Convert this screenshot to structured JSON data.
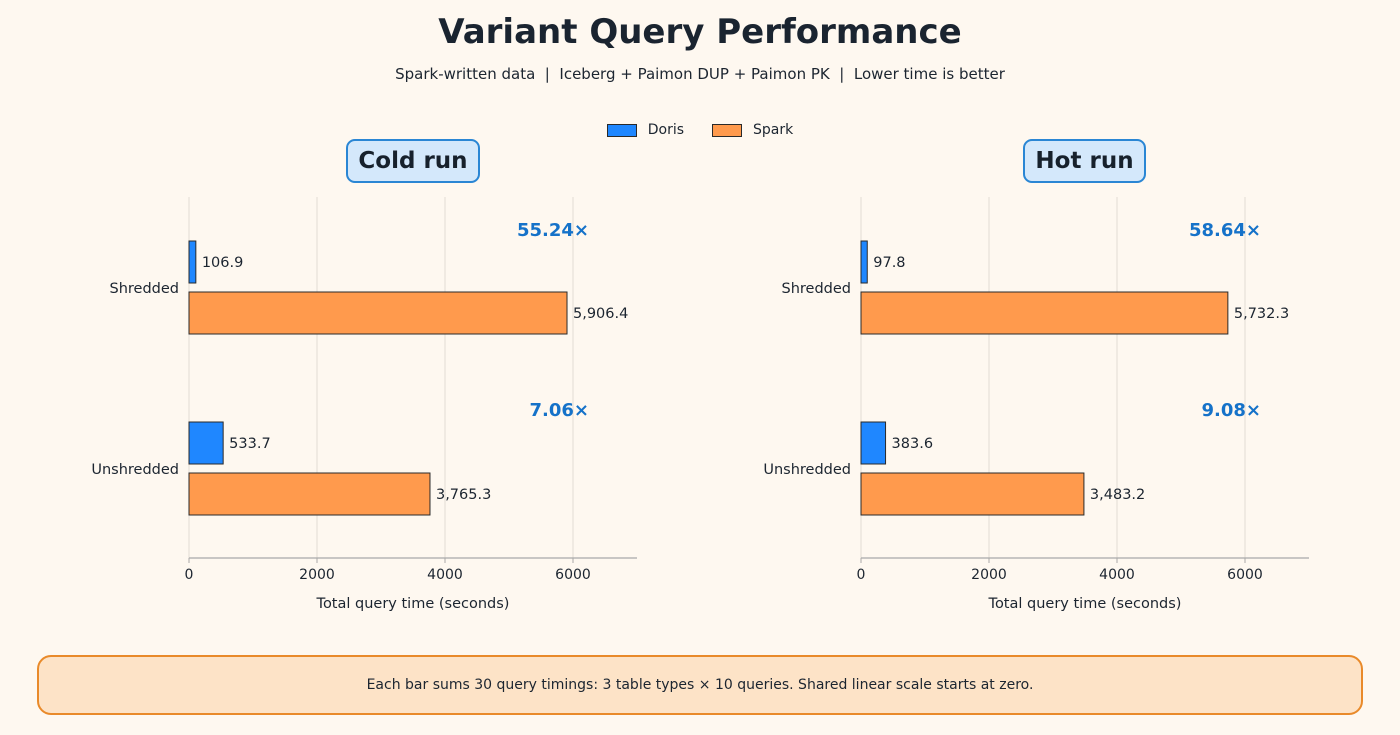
{
  "title": "Variant Query Performance",
  "subtitle": "Spark-written data  |  Iceberg + Paimon DUP + Paimon PK  |  Lower time is better",
  "legend": [
    {
      "name": "Doris",
      "color": "#1f87ff"
    },
    {
      "name": "Spark",
      "color": "#ff9a4d"
    }
  ],
  "footnote": "Each bar sums 30 query timings: 3 table types × 10 queries. Shared linear scale starts at zero.",
  "chart_data": [
    {
      "type": "bar",
      "orientation": "horizontal",
      "title": "Cold run",
      "xlabel": "Total query time (seconds)",
      "categories": [
        "Shredded",
        "Unshredded"
      ],
      "series": [
        {
          "name": "Doris",
          "values": [
            106.9,
            533.7
          ],
          "labels": [
            "106.9",
            "533.7"
          ]
        },
        {
          "name": "Spark",
          "values": [
            5906.4,
            3765.3
          ],
          "labels": [
            "5,906.4",
            "3,765.3"
          ]
        }
      ],
      "speedups": [
        "55.24×",
        "7.06×"
      ],
      "xlim": [
        0,
        7000
      ],
      "xticks": [
        0,
        2000,
        4000,
        6000
      ],
      "grid": true
    },
    {
      "type": "bar",
      "orientation": "horizontal",
      "title": "Hot run",
      "xlabel": "Total query time (seconds)",
      "categories": [
        "Shredded",
        "Unshredded"
      ],
      "series": [
        {
          "name": "Doris",
          "values": [
            97.8,
            383.6
          ],
          "labels": [
            "97.8",
            "383.6"
          ]
        },
        {
          "name": "Spark",
          "values": [
            5732.3,
            3483.2
          ],
          "labels": [
            "5,732.3",
            "3,483.2"
          ]
        }
      ],
      "speedups": [
        "58.64×",
        "9.08×"
      ],
      "xlim": [
        0,
        7000
      ],
      "xticks": [
        0,
        2000,
        4000,
        6000
      ],
      "grid": true
    }
  ]
}
